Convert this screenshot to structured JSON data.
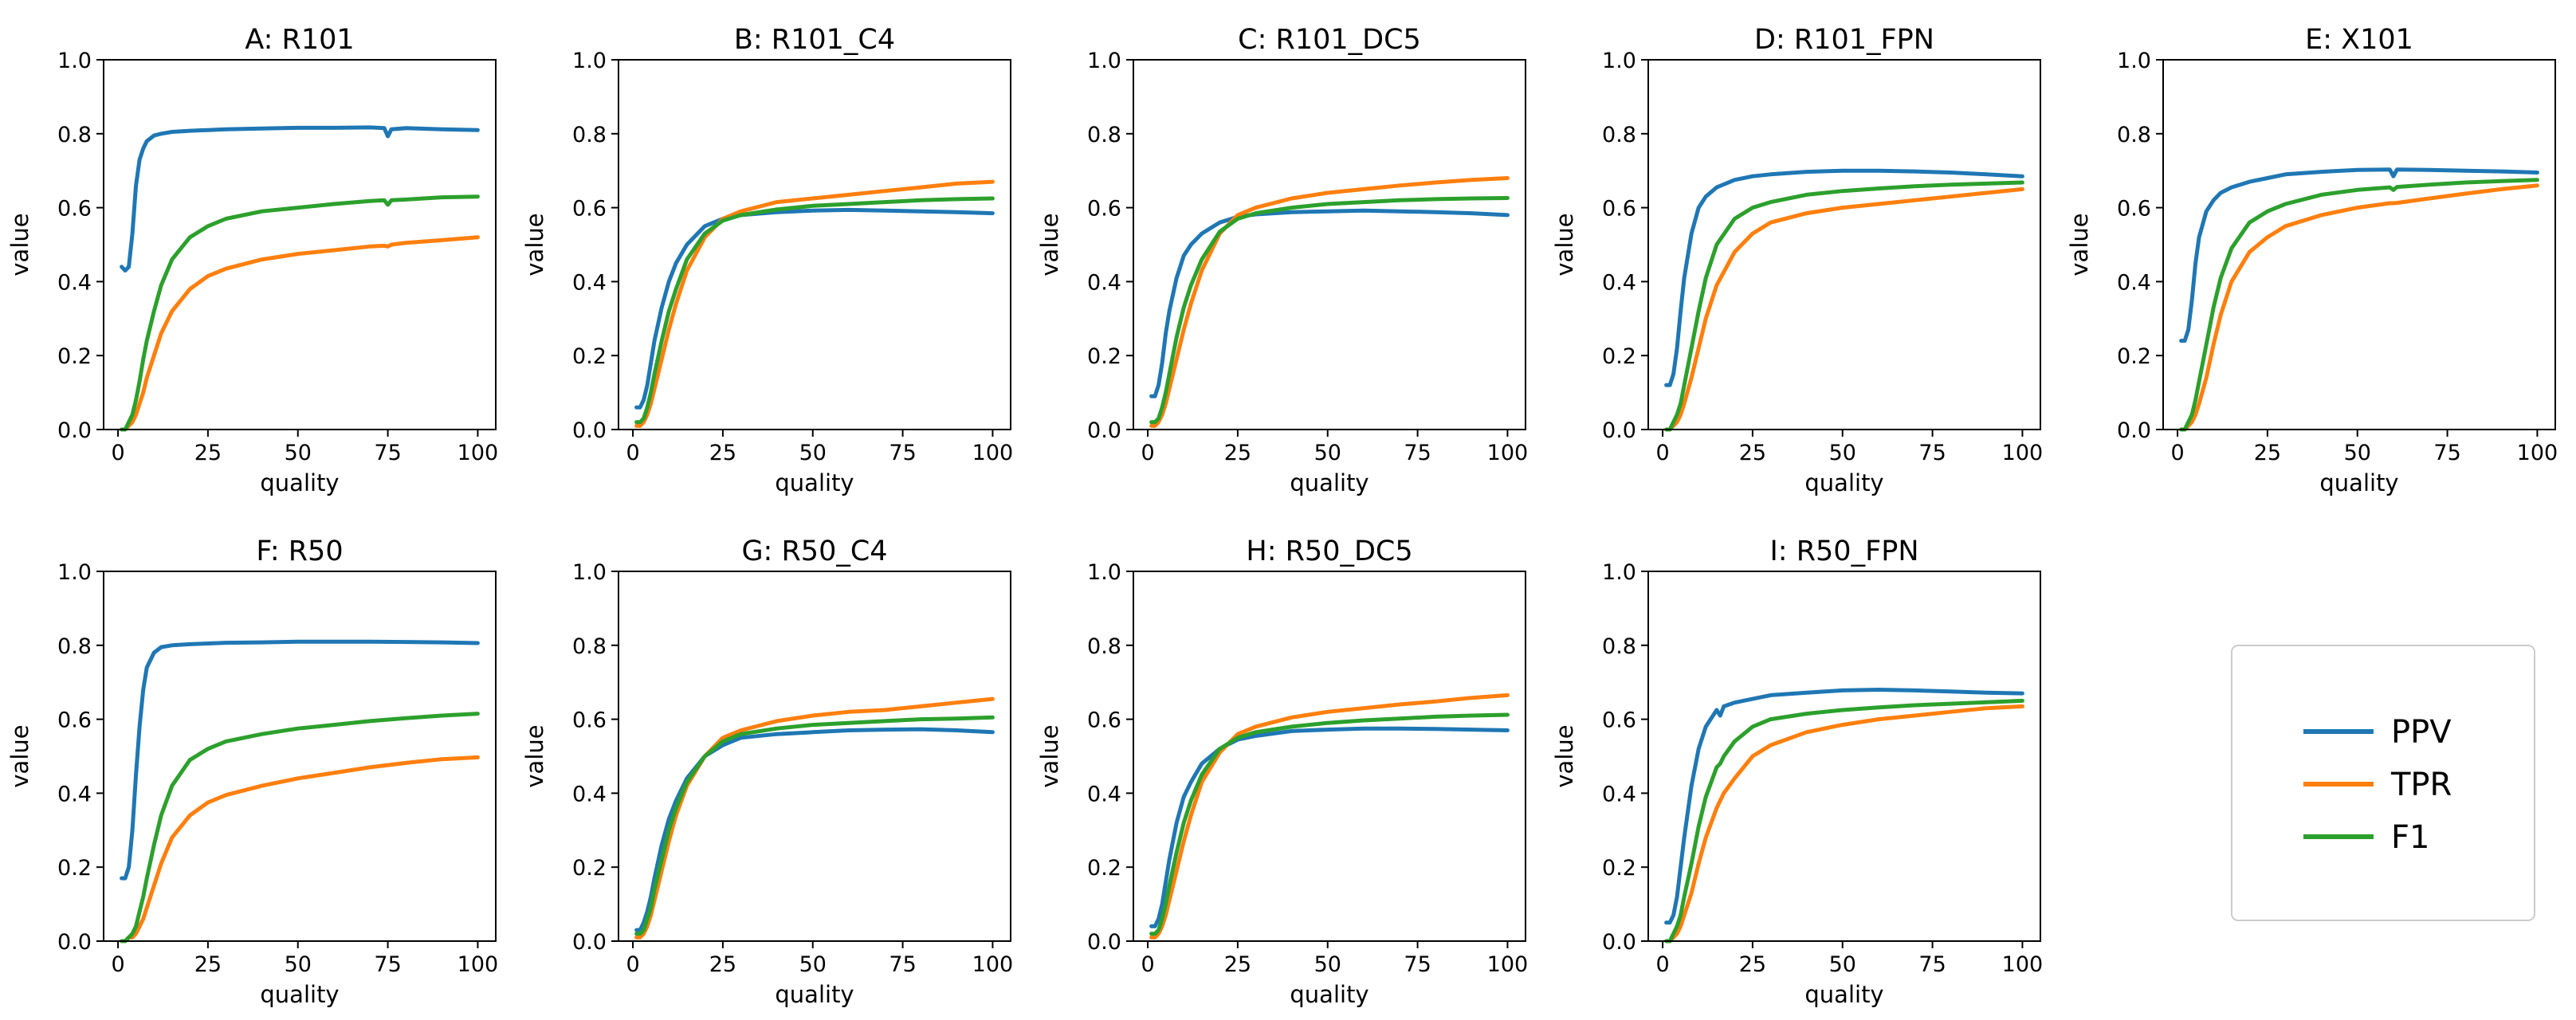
{
  "figure": {
    "legend": {
      "placement": "empty grid cell, bottom-right",
      "entries": [
        {
          "label": "PPV",
          "color": "#1f77b4"
        },
        {
          "label": "TPR",
          "color": "#ff7f0e"
        },
        {
          "label": "F1",
          "color": "#2ca02c"
        }
      ]
    }
  },
  "chart_data": [
    {
      "type": "line",
      "title": "A: R101",
      "xlabel": "quality",
      "ylabel": "value",
      "xlim": [
        -4,
        105
      ],
      "ylim": [
        0,
        1
      ],
      "xticks": [
        "0",
        "25",
        "50",
        "75",
        "100"
      ],
      "yticks": [
        "0.0",
        "0.2",
        "0.4",
        "0.6",
        "0.8",
        "1.0"
      ],
      "x": [
        1,
        2,
        3,
        4,
        5,
        6,
        7,
        8,
        10,
        12,
        15,
        20,
        25,
        30,
        40,
        50,
        60,
        70,
        74,
        75,
        76,
        80,
        90,
        100
      ],
      "series": [
        {
          "name": "PPV",
          "values": [
            0.44,
            0.43,
            0.44,
            0.53,
            0.66,
            0.73,
            0.76,
            0.78,
            0.795,
            0.8,
            0.805,
            0.808,
            0.81,
            0.812,
            0.814,
            0.816,
            0.816,
            0.817,
            0.815,
            0.793,
            0.812,
            0.815,
            0.812,
            0.81
          ]
        },
        {
          "name": "TPR",
          "values": [
            0.0,
            0.0,
            0.01,
            0.02,
            0.04,
            0.07,
            0.1,
            0.14,
            0.2,
            0.26,
            0.32,
            0.38,
            0.415,
            0.435,
            0.46,
            0.475,
            0.485,
            0.495,
            0.497,
            0.495,
            0.5,
            0.505,
            0.512,
            0.52
          ]
        },
        {
          "name": "F1",
          "values": [
            0.0,
            0.0,
            0.02,
            0.04,
            0.08,
            0.13,
            0.19,
            0.24,
            0.32,
            0.39,
            0.46,
            0.52,
            0.55,
            0.57,
            0.59,
            0.6,
            0.61,
            0.618,
            0.62,
            0.608,
            0.62,
            0.622,
            0.628,
            0.63
          ]
        }
      ]
    },
    {
      "type": "line",
      "title": "B: R101_C4",
      "xlabel": "quality",
      "ylabel": "value",
      "xlim": [
        -4,
        105
      ],
      "ylim": [
        0,
        1
      ],
      "xticks": [
        "0",
        "25",
        "50",
        "75",
        "100"
      ],
      "yticks": [
        "0.0",
        "0.2",
        "0.4",
        "0.6",
        "0.8",
        "1.0"
      ],
      "x": [
        1,
        2,
        3,
        4,
        5,
        6,
        8,
        10,
        12,
        15,
        20,
        25,
        30,
        40,
        50,
        60,
        70,
        80,
        90,
        100
      ],
      "series": [
        {
          "name": "PPV",
          "values": [
            0.06,
            0.06,
            0.08,
            0.12,
            0.18,
            0.24,
            0.33,
            0.4,
            0.45,
            0.5,
            0.55,
            0.57,
            0.58,
            0.588,
            0.592,
            0.594,
            0.592,
            0.59,
            0.588,
            0.585
          ]
        },
        {
          "name": "TPR",
          "values": [
            0.01,
            0.01,
            0.02,
            0.04,
            0.07,
            0.11,
            0.19,
            0.27,
            0.34,
            0.43,
            0.52,
            0.57,
            0.59,
            0.615,
            0.625,
            0.635,
            0.645,
            0.655,
            0.665,
            0.67
          ]
        },
        {
          "name": "F1",
          "values": [
            0.02,
            0.02,
            0.03,
            0.06,
            0.1,
            0.15,
            0.24,
            0.32,
            0.38,
            0.46,
            0.53,
            0.565,
            0.58,
            0.595,
            0.605,
            0.61,
            0.615,
            0.62,
            0.623,
            0.625
          ]
        }
      ]
    },
    {
      "type": "line",
      "title": "C: R101_DC5",
      "xlabel": "quality",
      "ylabel": "value",
      "xlim": [
        -4,
        105
      ],
      "ylim": [
        0,
        1
      ],
      "xticks": [
        "0",
        "25",
        "50",
        "75",
        "100"
      ],
      "yticks": [
        "0.0",
        "0.2",
        "0.4",
        "0.6",
        "0.8",
        "1.0"
      ],
      "x": [
        1,
        2,
        3,
        4,
        5,
        6,
        8,
        10,
        12,
        15,
        20,
        25,
        30,
        40,
        50,
        60,
        70,
        80,
        90,
        100
      ],
      "series": [
        {
          "name": "PPV",
          "values": [
            0.09,
            0.09,
            0.12,
            0.18,
            0.26,
            0.32,
            0.41,
            0.47,
            0.5,
            0.53,
            0.56,
            0.575,
            0.582,
            0.588,
            0.59,
            0.592,
            0.59,
            0.588,
            0.585,
            0.58
          ]
        },
        {
          "name": "TPR",
          "values": [
            0.01,
            0.01,
            0.02,
            0.04,
            0.07,
            0.11,
            0.19,
            0.27,
            0.34,
            0.43,
            0.53,
            0.58,
            0.6,
            0.625,
            0.64,
            0.65,
            0.66,
            0.668,
            0.675,
            0.68
          ]
        },
        {
          "name": "F1",
          "values": [
            0.02,
            0.02,
            0.03,
            0.06,
            0.1,
            0.15,
            0.25,
            0.33,
            0.39,
            0.46,
            0.535,
            0.57,
            0.585,
            0.6,
            0.61,
            0.615,
            0.62,
            0.623,
            0.625,
            0.626
          ]
        }
      ]
    },
    {
      "type": "line",
      "title": "D: R101_FPN",
      "xlabel": "quality",
      "ylabel": "value",
      "xlim": [
        -4,
        105
      ],
      "ylim": [
        0,
        1
      ],
      "xticks": [
        "0",
        "25",
        "50",
        "75",
        "100"
      ],
      "yticks": [
        "0.0",
        "0.2",
        "0.4",
        "0.6",
        "0.8",
        "1.0"
      ],
      "x": [
        1,
        2,
        3,
        4,
        5,
        6,
        8,
        10,
        12,
        15,
        20,
        25,
        30,
        40,
        50,
        60,
        70,
        80,
        90,
        100
      ],
      "series": [
        {
          "name": "PPV",
          "values": [
            0.12,
            0.12,
            0.15,
            0.22,
            0.32,
            0.41,
            0.53,
            0.6,
            0.63,
            0.655,
            0.675,
            0.685,
            0.69,
            0.697,
            0.7,
            0.7,
            0.698,
            0.695,
            0.69,
            0.685
          ]
        },
        {
          "name": "TPR",
          "values": [
            0.0,
            0.0,
            0.01,
            0.02,
            0.04,
            0.07,
            0.14,
            0.22,
            0.3,
            0.39,
            0.48,
            0.53,
            0.56,
            0.585,
            0.6,
            0.61,
            0.62,
            0.63,
            0.64,
            0.65
          ]
        },
        {
          "name": "F1",
          "values": [
            0.0,
            0.0,
            0.02,
            0.04,
            0.07,
            0.12,
            0.22,
            0.32,
            0.41,
            0.5,
            0.57,
            0.6,
            0.615,
            0.635,
            0.645,
            0.652,
            0.658,
            0.662,
            0.665,
            0.668
          ]
        }
      ]
    },
    {
      "type": "line",
      "title": "E: X101",
      "xlabel": "quality",
      "ylabel": "value",
      "xlim": [
        -4,
        105
      ],
      "ylim": [
        0,
        1
      ],
      "xticks": [
        "0",
        "25",
        "50",
        "75",
        "100"
      ],
      "yticks": [
        "0.0",
        "0.2",
        "0.4",
        "0.6",
        "0.8",
        "1.0"
      ],
      "x": [
        1,
        2,
        3,
        4,
        5,
        6,
        8,
        10,
        12,
        15,
        20,
        25,
        30,
        40,
        50,
        59,
        60,
        61,
        70,
        80,
        90,
        100
      ],
      "series": [
        {
          "name": "PPV",
          "values": [
            0.24,
            0.24,
            0.27,
            0.35,
            0.45,
            0.52,
            0.59,
            0.62,
            0.64,
            0.655,
            0.67,
            0.68,
            0.69,
            0.697,
            0.702,
            0.703,
            0.685,
            0.703,
            0.702,
            0.7,
            0.698,
            0.695
          ]
        },
        {
          "name": "TPR",
          "values": [
            0.0,
            0.0,
            0.01,
            0.02,
            0.04,
            0.07,
            0.14,
            0.23,
            0.31,
            0.4,
            0.48,
            0.52,
            0.55,
            0.58,
            0.6,
            0.612,
            0.612,
            0.613,
            0.625,
            0.638,
            0.65,
            0.66
          ]
        },
        {
          "name": "F1",
          "values": [
            0.0,
            0.0,
            0.02,
            0.04,
            0.08,
            0.13,
            0.23,
            0.33,
            0.41,
            0.49,
            0.56,
            0.59,
            0.61,
            0.635,
            0.648,
            0.655,
            0.648,
            0.656,
            0.662,
            0.668,
            0.672,
            0.675
          ]
        }
      ]
    },
    {
      "type": "line",
      "title": "F: R50",
      "xlabel": "quality",
      "ylabel": "value",
      "xlim": [
        -4,
        105
      ],
      "ylim": [
        0,
        1
      ],
      "xticks": [
        "0",
        "25",
        "50",
        "75",
        "100"
      ],
      "yticks": [
        "0.0",
        "0.2",
        "0.4",
        "0.6",
        "0.8",
        "1.0"
      ],
      "x": [
        1,
        2,
        3,
        4,
        5,
        6,
        7,
        8,
        10,
        12,
        15,
        20,
        25,
        30,
        40,
        50,
        60,
        70,
        80,
        90,
        100
      ],
      "series": [
        {
          "name": "PPV",
          "values": [
            0.17,
            0.17,
            0.2,
            0.3,
            0.45,
            0.58,
            0.68,
            0.74,
            0.78,
            0.795,
            0.8,
            0.803,
            0.805,
            0.807,
            0.808,
            0.81,
            0.81,
            0.81,
            0.809,
            0.808,
            0.806
          ]
        },
        {
          "name": "TPR",
          "values": [
            0.0,
            0.0,
            0.01,
            0.01,
            0.02,
            0.04,
            0.06,
            0.09,
            0.15,
            0.21,
            0.28,
            0.34,
            0.375,
            0.395,
            0.42,
            0.44,
            0.455,
            0.47,
            0.482,
            0.492,
            0.497
          ]
        },
        {
          "name": "F1",
          "values": [
            0.0,
            0.0,
            0.01,
            0.02,
            0.04,
            0.08,
            0.12,
            0.17,
            0.26,
            0.34,
            0.42,
            0.49,
            0.52,
            0.54,
            0.56,
            0.575,
            0.585,
            0.595,
            0.603,
            0.61,
            0.615
          ]
        }
      ]
    },
    {
      "type": "line",
      "title": "G: R50_C4",
      "xlabel": "quality",
      "ylabel": "value",
      "xlim": [
        -4,
        105
      ],
      "ylim": [
        0,
        1
      ],
      "xticks": [
        "0",
        "25",
        "50",
        "75",
        "100"
      ],
      "yticks": [
        "0.0",
        "0.2",
        "0.4",
        "0.6",
        "0.8",
        "1.0"
      ],
      "x": [
        1,
        2,
        3,
        4,
        5,
        6,
        8,
        10,
        12,
        15,
        20,
        25,
        30,
        40,
        50,
        60,
        70,
        80,
        90,
        100
      ],
      "series": [
        {
          "name": "PPV",
          "values": [
            0.03,
            0.03,
            0.05,
            0.08,
            0.12,
            0.17,
            0.26,
            0.33,
            0.38,
            0.44,
            0.5,
            0.53,
            0.55,
            0.56,
            0.565,
            0.57,
            0.572,
            0.573,
            0.57,
            0.565
          ]
        },
        {
          "name": "TPR",
          "values": [
            0.01,
            0.01,
            0.02,
            0.04,
            0.07,
            0.11,
            0.19,
            0.27,
            0.34,
            0.42,
            0.5,
            0.55,
            0.57,
            0.595,
            0.61,
            0.62,
            0.625,
            0.635,
            0.645,
            0.655
          ]
        },
        {
          "name": "F1",
          "values": [
            0.02,
            0.02,
            0.03,
            0.06,
            0.09,
            0.14,
            0.22,
            0.3,
            0.36,
            0.43,
            0.5,
            0.54,
            0.56,
            0.575,
            0.585,
            0.59,
            0.595,
            0.6,
            0.602,
            0.605
          ]
        }
      ]
    },
    {
      "type": "line",
      "title": "H: R50_DC5",
      "xlabel": "quality",
      "ylabel": "value",
      "xlim": [
        -4,
        105
      ],
      "ylim": [
        0,
        1
      ],
      "xticks": [
        "0",
        "25",
        "50",
        "75",
        "100"
      ],
      "yticks": [
        "0.0",
        "0.2",
        "0.4",
        "0.6",
        "0.8",
        "1.0"
      ],
      "x": [
        1,
        2,
        3,
        4,
        5,
        6,
        8,
        10,
        12,
        15,
        20,
        25,
        30,
        40,
        50,
        60,
        70,
        80,
        90,
        100
      ],
      "series": [
        {
          "name": "PPV",
          "values": [
            0.04,
            0.04,
            0.06,
            0.1,
            0.16,
            0.22,
            0.32,
            0.39,
            0.43,
            0.48,
            0.52,
            0.545,
            0.555,
            0.568,
            0.572,
            0.575,
            0.575,
            0.574,
            0.572,
            0.57
          ]
        },
        {
          "name": "TPR",
          "values": [
            0.01,
            0.01,
            0.02,
            0.04,
            0.07,
            0.11,
            0.19,
            0.27,
            0.34,
            0.43,
            0.51,
            0.56,
            0.58,
            0.605,
            0.62,
            0.63,
            0.64,
            0.648,
            0.658,
            0.665
          ]
        },
        {
          "name": "F1",
          "values": [
            0.02,
            0.02,
            0.03,
            0.06,
            0.1,
            0.15,
            0.24,
            0.32,
            0.38,
            0.45,
            0.52,
            0.55,
            0.565,
            0.58,
            0.59,
            0.597,
            0.602,
            0.607,
            0.61,
            0.612
          ]
        }
      ]
    },
    {
      "type": "line",
      "title": "I: R50_FPN",
      "xlabel": "quality",
      "ylabel": "value",
      "xlim": [
        -4,
        105
      ],
      "ylim": [
        0,
        1
      ],
      "xticks": [
        "0",
        "25",
        "50",
        "75",
        "100"
      ],
      "yticks": [
        "0.0",
        "0.2",
        "0.4",
        "0.6",
        "0.8",
        "1.0"
      ],
      "x": [
        1,
        2,
        3,
        4,
        5,
        6,
        8,
        10,
        12,
        15,
        16,
        17,
        20,
        25,
        30,
        40,
        50,
        60,
        70,
        80,
        90,
        100
      ],
      "series": [
        {
          "name": "PPV",
          "values": [
            0.05,
            0.05,
            0.07,
            0.12,
            0.2,
            0.28,
            0.42,
            0.52,
            0.58,
            0.625,
            0.61,
            0.635,
            0.645,
            0.655,
            0.665,
            0.672,
            0.678,
            0.68,
            0.678,
            0.675,
            0.672,
            0.67
          ]
        },
        {
          "name": "TPR",
          "values": [
            0.0,
            0.0,
            0.01,
            0.02,
            0.04,
            0.07,
            0.13,
            0.21,
            0.28,
            0.36,
            0.38,
            0.4,
            0.44,
            0.5,
            0.53,
            0.565,
            0.585,
            0.6,
            0.61,
            0.62,
            0.63,
            0.635
          ]
        },
        {
          "name": "F1",
          "values": [
            0.0,
            0.0,
            0.02,
            0.04,
            0.07,
            0.12,
            0.21,
            0.31,
            0.39,
            0.47,
            0.48,
            0.5,
            0.54,
            0.58,
            0.6,
            0.615,
            0.625,
            0.632,
            0.638,
            0.642,
            0.646,
            0.65
          ]
        }
      ]
    }
  ]
}
